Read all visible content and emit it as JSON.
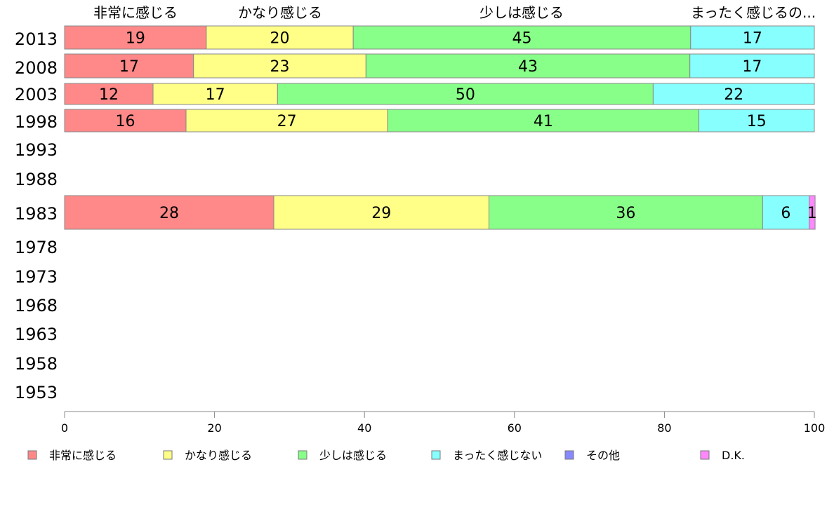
{
  "chart_data": {
    "type": "bar",
    "orientation": "horizontal",
    "stacked": true,
    "title": "",
    "xlabel": "",
    "ylabel": "",
    "xlim": [
      0,
      100
    ],
    "x_ticks": [
      "0",
      "20",
      "40",
      "60",
      "80",
      "100"
    ],
    "categories": [
      "2013",
      "2008",
      "2003",
      "1998",
      "1993",
      "1988",
      "1983",
      "1978",
      "1973",
      "1968",
      "1963",
      "1958",
      "1953"
    ],
    "series": [
      {
        "name": "非常に感じる",
        "color": "#ff8888",
        "values": [
          19,
          17,
          12,
          16,
          null,
          null,
          28,
          null,
          null,
          null,
          null,
          null,
          null
        ]
      },
      {
        "name": "かなり感じる",
        "color": "#ffff88",
        "values": [
          20,
          23,
          17,
          27,
          null,
          null,
          29,
          null,
          null,
          null,
          null,
          null,
          null
        ]
      },
      {
        "name": "少しは感じる",
        "color": "#88ff88",
        "values": [
          45,
          43,
          50,
          41,
          null,
          null,
          36,
          null,
          null,
          null,
          null,
          null,
          null
        ]
      },
      {
        "name": "まったく感じない",
        "color": "#88ffff",
        "values": [
          17,
          17,
          22,
          15,
          null,
          null,
          6,
          null,
          null,
          null,
          null,
          null,
          null
        ]
      },
      {
        "name": "その他",
        "color": "#8888ff",
        "values": [
          0,
          0,
          0,
          0,
          null,
          null,
          0,
          null,
          null,
          null,
          null,
          null,
          null
        ]
      },
      {
        "name": "D.K.",
        "color": "#ff88ff",
        "values": [
          0,
          0,
          0,
          0,
          null,
          null,
          1,
          null,
          null,
          null,
          null,
          null,
          null
        ]
      }
    ],
    "segment_widths": [
      [
        18.9,
        19.6,
        45.0,
        16.5,
        0,
        0
      ],
      [
        17.2,
        23.0,
        43.2,
        16.6,
        0,
        0
      ],
      [
        11.8,
        16.6,
        50.1,
        21.5,
        0,
        0
      ],
      [
        16.2,
        26.9,
        41.5,
        15.4,
        0,
        0
      ],
      null,
      null,
      [
        27.9,
        28.7,
        36.5,
        6.2,
        0,
        0.8
      ],
      null,
      null,
      null,
      null,
      null,
      null
    ],
    "top_labels": [
      "非常に感じる",
      "かなり感じる",
      "少しは感じる",
      "まったく感じるの..."
    ],
    "legend_position": "bottom",
    "grid": false
  }
}
